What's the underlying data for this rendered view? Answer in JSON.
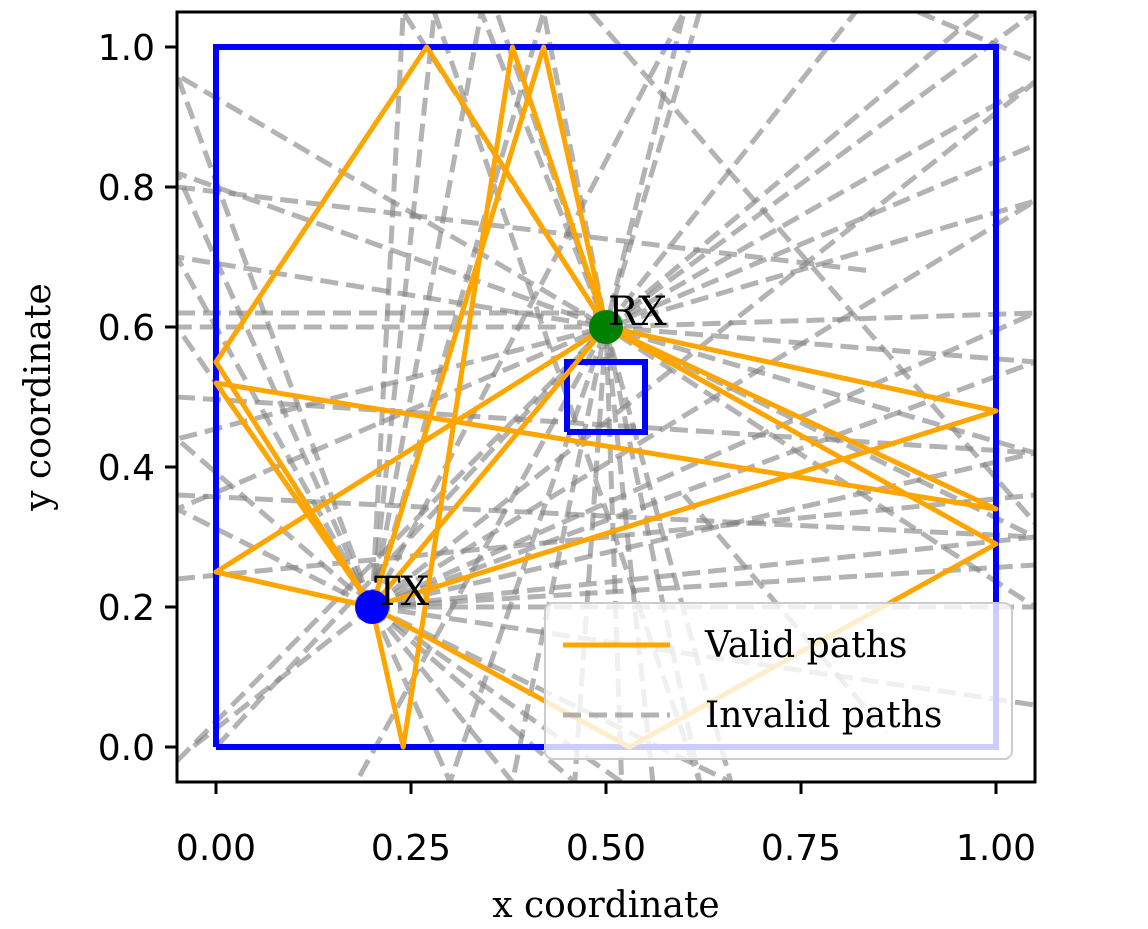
{
  "chart_data": {
    "type": "line",
    "title": "",
    "xlabel": "x coordinate",
    "ylabel": "y coordinate",
    "xlim": [
      -0.05,
      1.05
    ],
    "ylim": [
      -0.05,
      1.05
    ],
    "x_ticks": [
      "0.00",
      "0.25",
      "0.50",
      "0.75",
      "1.00"
    ],
    "x_tick_values": [
      0.0,
      0.25,
      0.5,
      0.75,
      1.0
    ],
    "y_ticks": [
      "0.0",
      "0.2",
      "0.4",
      "0.6",
      "0.8",
      "1.0"
    ],
    "y_tick_values": [
      0.0,
      0.2,
      0.4,
      0.6,
      0.8,
      1.0
    ],
    "grid": false,
    "legend_position": "lower right",
    "colors": {
      "walls": "#0000ff",
      "valid": "#ffa500",
      "invalid": "#808080",
      "tx": "#0000ff",
      "rx": "#008000"
    },
    "walls": [
      {
        "name": "outer-wall",
        "x": [
          0,
          1,
          1,
          0,
          0
        ],
        "y": [
          0,
          0,
          1,
          1,
          0
        ]
      },
      {
        "name": "inner-obstacle",
        "x": [
          0.45,
          0.55,
          0.55,
          0.45,
          0.45
        ],
        "y": [
          0.45,
          0.45,
          0.55,
          0.55,
          0.45
        ]
      }
    ],
    "markers": [
      {
        "label": "TX",
        "x": 0.2,
        "y": 0.2
      },
      {
        "label": "RX",
        "x": 0.5,
        "y": 0.6
      }
    ],
    "valid_paths": [
      {
        "x": [
          0.2,
          0.5
        ],
        "y": [
          0.2,
          0.6
        ]
      },
      {
        "x": [
          0.2,
          0.0,
          0.5
        ],
        "y": [
          0.2,
          0.25,
          0.6
        ]
      },
      {
        "x": [
          0.2,
          1.0,
          0.5
        ],
        "y": [
          0.2,
          0.48,
          0.6
        ]
      },
      {
        "x": [
          0.2,
          0.0,
          0.27,
          0.5
        ],
        "y": [
          0.2,
          0.55,
          1.0,
          0.6
        ]
      },
      {
        "x": [
          0.2,
          0.24,
          0.38,
          0.5
        ],
        "y": [
          0.2,
          0.0,
          1.0,
          0.6
        ]
      },
      {
        "x": [
          0.2,
          0.42,
          0.5
        ],
        "y": [
          0.2,
          1.0,
          0.6
        ]
      },
      {
        "x": [
          0.2,
          0.0,
          1.0,
          0.5
        ],
        "y": [
          0.2,
          0.52,
          0.34,
          0.6
        ]
      },
      {
        "x": [
          0.2,
          0.53,
          1.0,
          0.5
        ],
        "y": [
          0.2,
          0.0,
          0.29,
          0.6
        ]
      }
    ],
    "invalid_paths": [
      {
        "x": [
          0.2,
          0.42,
          0.5
        ],
        "y": [
          0.2,
          1.05,
          0.6
        ]
      },
      {
        "x": [
          0.2,
          0.34,
          0.5
        ],
        "y": [
          0.2,
          1.05,
          0.6
        ]
      },
      {
        "x": [
          0.2,
          0.24,
          0.5
        ],
        "y": [
          0.2,
          1.05,
          0.6
        ]
      },
      {
        "x": [
          0.2,
          0.6,
          0.5
        ],
        "y": [
          0.2,
          1.05,
          0.6
        ]
      },
      {
        "x": [
          0.2,
          0.28,
          0.62,
          0.5
        ],
        "y": [
          0.2,
          1.05,
          -0.05,
          0.6
        ]
      },
      {
        "x": [
          0.2,
          0.46,
          0.5
        ],
        "y": [
          0.2,
          -0.05,
          0.6
        ]
      },
      {
        "x": [
          0.2,
          0.3,
          0.5
        ],
        "y": [
          0.2,
          -0.05,
          0.6
        ]
      },
      {
        "x": [
          0.2,
          0.66,
          0.5
        ],
        "y": [
          0.2,
          -0.05,
          0.6
        ]
      },
      {
        "x": [
          0.2,
          0.52,
          0.5
        ],
        "y": [
          0.2,
          -0.05,
          0.6
        ]
      },
      {
        "x": [
          0.2,
          0.38,
          0.5
        ],
        "y": [
          0.2,
          -0.05,
          0.6
        ]
      },
      {
        "x": [
          0.2,
          1.05,
          0.5
        ],
        "y": [
          0.2,
          0.78,
          0.6
        ]
      },
      {
        "x": [
          0.2,
          1.05,
          0.5
        ],
        "y": [
          0.2,
          0.62,
          0.6
        ]
      },
      {
        "x": [
          0.2,
          1.05,
          0.5
        ],
        "y": [
          0.2,
          0.42,
          0.6
        ]
      },
      {
        "x": [
          0.2,
          1.05,
          0.5
        ],
        "y": [
          0.2,
          0.3,
          0.6
        ]
      },
      {
        "x": [
          0.2,
          1.05,
          0.5
        ],
        "y": [
          0.2,
          0.2,
          0.6
        ]
      },
      {
        "x": [
          0.2,
          1.05,
          0.5
        ],
        "y": [
          0.2,
          0.55,
          0.6
        ]
      },
      {
        "x": [
          0.2,
          1.05,
          0.5
        ],
        "y": [
          0.2,
          0.95,
          0.6
        ]
      },
      {
        "x": [
          0.2,
          -0.05,
          0.5
        ],
        "y": [
          0.2,
          0.82,
          0.6
        ]
      },
      {
        "x": [
          0.2,
          -0.05,
          0.5
        ],
        "y": [
          0.2,
          0.7,
          0.6
        ]
      },
      {
        "x": [
          0.2,
          -0.05,
          0.5
        ],
        "y": [
          0.2,
          0.6,
          0.6
        ]
      },
      {
        "x": [
          0.2,
          -0.05,
          0.5
        ],
        "y": [
          0.2,
          0.44,
          0.6
        ]
      },
      {
        "x": [
          0.2,
          -0.05,
          0.5
        ],
        "y": [
          0.2,
          0.34,
          0.6
        ]
      },
      {
        "x": [
          0.2,
          -0.05,
          0.5
        ],
        "y": [
          0.2,
          0.96,
          0.6
        ]
      },
      {
        "x": [
          -0.05,
          0.5
        ],
        "y": [
          -0.02,
          0.6
        ]
      },
      {
        "x": [
          0.0,
          0.5
        ],
        "y": [
          0.0,
          0.6
        ]
      },
      {
        "x": [
          0.2,
          -0.03
        ],
        "y": [
          0.2,
          0.0
        ]
      },
      {
        "x": [
          0.2,
          1.05
        ],
        "y": [
          0.2,
          0.06
        ]
      },
      {
        "x": [
          0.2,
          1.05
        ],
        "y": [
          0.2,
          0.26
        ]
      },
      {
        "x": [
          0.5,
          1.05
        ],
        "y": [
          0.6,
          1.05
        ]
      },
      {
        "x": [
          0.5,
          0.98
        ],
        "y": [
          0.6,
          1.05
        ]
      },
      {
        "x": [
          0.5,
          0.82
        ],
        "y": [
          0.6,
          1.05
        ]
      },
      {
        "x": [
          0.5,
          1.05
        ],
        "y": [
          0.6,
          0.86
        ]
      },
      {
        "x": [
          0.5,
          0.18
        ],
        "y": [
          0.6,
          -0.05
        ]
      },
      {
        "x": [
          0.5,
          0.56
        ],
        "y": [
          0.6,
          -0.05
        ]
      },
      {
        "x": [
          0.5,
          0.62
        ],
        "y": [
          0.6,
          1.05
        ]
      },
      {
        "x": [
          0.5,
          0.36
        ],
        "y": [
          0.6,
          1.05
        ]
      },
      {
        "x": [
          -0.05,
          1.05
        ],
        "y": [
          0.36,
          0.3
        ]
      },
      {
        "x": [
          -0.05,
          1.05
        ],
        "y": [
          0.24,
          0.36
        ]
      },
      {
        "x": [
          -0.05,
          1.05
        ],
        "y": [
          0.5,
          0.42
        ]
      },
      {
        "x": [
          -0.05,
          0.84
        ],
        "y": [
          0.8,
          0.68
        ]
      },
      {
        "x": [
          0.48,
          1.05
        ],
        "y": [
          1.05,
          0.32
        ]
      },
      {
        "x": [
          0.9,
          1.05
        ],
        "y": [
          1.05,
          0.98
        ]
      },
      {
        "x": [
          0.6,
          0.86
        ],
        "y": [
          0.36,
          0.02
        ]
      },
      {
        "x": [
          -0.05,
          0.5
        ],
        "y": [
          0.62,
          0.62
        ]
      }
    ],
    "legend": [
      {
        "label": "Valid paths",
        "style": "solid"
      },
      {
        "label": "Invalid paths",
        "style": "dashed"
      }
    ]
  }
}
